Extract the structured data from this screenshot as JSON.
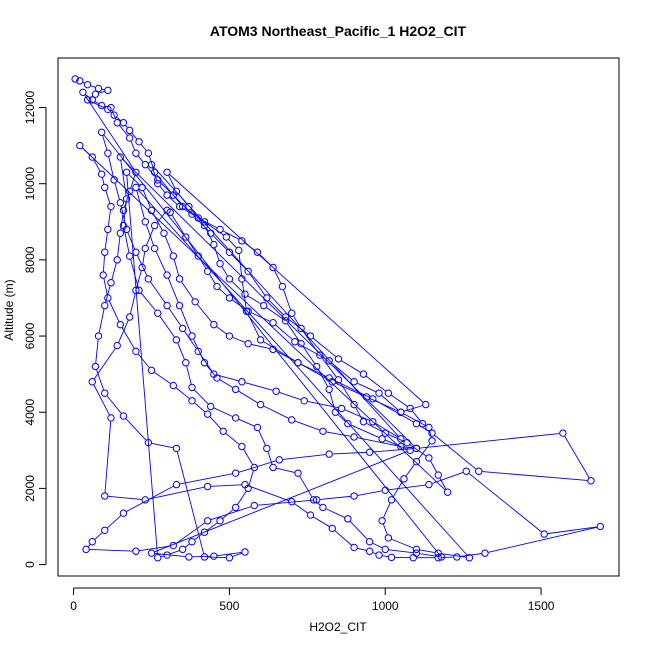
{
  "chart_data": {
    "type": "line",
    "title": "ATOM3 Northeast_Pacific_1 H2O2_CIT",
    "xlabel": "H2O2_CIT",
    "ylabel": "Altitude (m)",
    "xlim": [
      -50,
      1750
    ],
    "ylim": [
      -300,
      13300
    ],
    "xticks": [
      0,
      500,
      1000,
      1500
    ],
    "yticks": [
      0,
      2000,
      4000,
      6000,
      8000,
      10000,
      12000
    ],
    "grid": false,
    "legend": "none",
    "series_color": "#0000ff",
    "marker": "open-circle",
    "series": [
      {
        "name": "",
        "points": [
          [
            5,
            12750
          ],
          [
            20,
            12700
          ],
          [
            45,
            12600
          ],
          [
            80,
            12500
          ],
          [
            110,
            12450
          ],
          [
            70,
            12350
          ],
          [
            45,
            12200
          ],
          [
            110,
            11950
          ],
          [
            130,
            11800
          ],
          [
            160,
            11600
          ],
          [
            180,
            11400
          ],
          [
            210,
            11100
          ],
          [
            240,
            10800
          ],
          [
            260,
            10300
          ],
          [
            350,
            9400
          ],
          [
            420,
            9000
          ],
          [
            490,
            8600
          ],
          [
            530,
            8250
          ],
          [
            540,
            7500
          ],
          [
            555,
            6650
          ],
          [
            600,
            5900
          ],
          [
            720,
            5300
          ],
          [
            820,
            4900
          ],
          [
            960,
            4350
          ],
          [
            1100,
            3700
          ],
          [
            1150,
            3450
          ],
          [
            1300,
            2450
          ],
          [
            1660,
            2200
          ],
          [
            1570,
            3450
          ],
          [
            1100,
            3050
          ],
          [
            950,
            2950
          ],
          [
            820,
            2900
          ],
          [
            660,
            2750
          ],
          [
            520,
            2400
          ],
          [
            330,
            2100
          ],
          [
            160,
            1350
          ],
          [
            100,
            900
          ],
          [
            60,
            600
          ],
          [
            40,
            400
          ],
          [
            200,
            350
          ],
          [
            320,
            500
          ],
          [
            430,
            1150
          ],
          [
            580,
            1550
          ],
          [
            780,
            1700
          ],
          [
            900,
            1800
          ],
          [
            1000,
            1950
          ],
          [
            1140,
            2100
          ],
          [
            1260,
            2450
          ],
          [
            1510,
            800
          ],
          [
            1690,
            1000
          ],
          [
            1320,
            300
          ],
          [
            1230,
            200
          ],
          [
            1170,
            180
          ],
          [
            1090,
            180
          ],
          [
            1020,
            190
          ],
          [
            980,
            250
          ],
          [
            950,
            350
          ],
          [
            900,
            450
          ],
          [
            830,
            950
          ],
          [
            760,
            1300
          ],
          [
            700,
            1650
          ],
          [
            550,
            2100
          ],
          [
            430,
            2050
          ],
          [
            230,
            1700
          ],
          [
            100,
            1800
          ],
          [
            120,
            3850
          ],
          [
            60,
            4800
          ],
          [
            140,
            5750
          ],
          [
            180,
            6500
          ],
          [
            200,
            7200
          ],
          [
            220,
            7800
          ],
          [
            230,
            8300
          ],
          [
            260,
            8900
          ],
          [
            300,
            9300
          ],
          [
            310,
            9250
          ],
          [
            360,
            8600
          ],
          [
            400,
            8100
          ],
          [
            430,
            7700
          ],
          [
            460,
            7300
          ],
          [
            500,
            7000
          ],
          [
            560,
            6650
          ],
          [
            640,
            6350
          ],
          [
            710,
            5850
          ],
          [
            820,
            5350
          ],
          [
            900,
            4800
          ],
          [
            980,
            4500
          ],
          [
            1050,
            4000
          ],
          [
            1140,
            3600
          ],
          [
            1150,
            3250
          ],
          [
            1100,
            2700
          ],
          [
            1060,
            2250
          ],
          [
            1020,
            1700
          ],
          [
            990,
            1150
          ],
          [
            1010,
            700
          ],
          [
            1100,
            400
          ],
          [
            1170,
            300
          ],
          [
            1270,
            180
          ],
          [
            200,
            9900
          ],
          [
            230,
            9000
          ],
          [
            260,
            8300
          ],
          [
            300,
            7600
          ],
          [
            340,
            6800
          ],
          [
            380,
            6000
          ],
          [
            420,
            5300
          ],
          [
            460,
            4900
          ],
          [
            520,
            4600
          ],
          [
            600,
            4200
          ],
          [
            700,
            3800
          ],
          [
            800,
            3500
          ],
          [
            900,
            3350
          ],
          [
            1050,
            3100
          ],
          [
            1100,
            3050
          ],
          [
            150,
            10700
          ],
          [
            170,
            9600
          ],
          [
            160,
            8900
          ],
          [
            180,
            8100
          ],
          [
            210,
            7200
          ],
          [
            270,
            6600
          ],
          [
            330,
            5900
          ],
          [
            360,
            5300
          ],
          [
            380,
            4650
          ],
          [
            440,
            4150
          ],
          [
            520,
            3850
          ],
          [
            590,
            3600
          ],
          [
            620,
            3050
          ],
          [
            640,
            2550
          ],
          [
            720,
            2400
          ],
          [
            770,
            1700
          ],
          [
            800,
            1500
          ],
          [
            880,
            1200
          ],
          [
            950,
            600
          ],
          [
            1000,
            400
          ],
          [
            1100,
            300
          ],
          [
            1180,
            200
          ],
          [
            90,
            11350
          ],
          [
            110,
            10800
          ],
          [
            130,
            10100
          ],
          [
            150,
            9500
          ],
          [
            170,
            8800
          ],
          [
            200,
            8200
          ],
          [
            240,
            7500
          ],
          [
            300,
            6800
          ],
          [
            350,
            6200
          ],
          [
            400,
            5600
          ],
          [
            450,
            5000
          ],
          [
            540,
            4800
          ],
          [
            650,
            4550
          ],
          [
            740,
            4300
          ],
          [
            860,
            4100
          ],
          [
            960,
            3750
          ],
          [
            1050,
            3300
          ],
          [
            250,
            10500
          ],
          [
            270,
            10000
          ],
          [
            300,
            9700
          ],
          [
            340,
            9400
          ],
          [
            400,
            9100
          ],
          [
            470,
            8800
          ],
          [
            540,
            8500
          ],
          [
            590,
            8200
          ],
          [
            640,
            7800
          ],
          [
            670,
            7300
          ],
          [
            700,
            6600
          ],
          [
            730,
            6200
          ],
          [
            790,
            5500
          ],
          [
            850,
            4850
          ],
          [
            900,
            4200
          ],
          [
            930,
            3750
          ],
          [
            1000,
            3450
          ],
          [
            1070,
            3200
          ],
          [
            1140,
            2800
          ],
          [
            1170,
            2350
          ],
          [
            1200,
            1900
          ],
          [
            20,
            11000
          ],
          [
            60,
            10700
          ],
          [
            90,
            10250
          ],
          [
            100,
            9900
          ],
          [
            120,
            9400
          ],
          [
            110,
            8800
          ],
          [
            100,
            8200
          ],
          [
            95,
            7600
          ],
          [
            110,
            7000
          ],
          [
            150,
            6300
          ],
          [
            200,
            5600
          ],
          [
            250,
            5100
          ],
          [
            320,
            4700
          ],
          [
            380,
            4300
          ],
          [
            430,
            3950
          ],
          [
            480,
            3500
          ],
          [
            540,
            3100
          ],
          [
            580,
            2550
          ],
          [
            560,
            2000
          ],
          [
            520,
            1500
          ],
          [
            470,
            1150
          ],
          [
            420,
            850
          ],
          [
            380,
            600
          ],
          [
            350,
            400
          ],
          [
            300,
            250
          ],
          [
            270,
            180
          ],
          [
            170,
            10300
          ],
          [
            220,
            9900
          ],
          [
            250,
            9300
          ],
          [
            290,
            8700
          ],
          [
            320,
            8100
          ],
          [
            340,
            7500
          ],
          [
            390,
            6900
          ],
          [
            450,
            6300
          ],
          [
            500,
            6000
          ],
          [
            560,
            5800
          ],
          [
            640,
            5650
          ],
          [
            720,
            5300
          ],
          [
            830,
            4800
          ],
          [
            940,
            4400
          ],
          [
            1050,
            4000
          ],
          [
            1130,
            4200
          ],
          [
            300,
            10300
          ],
          [
            330,
            9800
          ],
          [
            370,
            9400
          ],
          [
            420,
            8900
          ],
          [
            450,
            8400
          ],
          [
            470,
            7900
          ],
          [
            500,
            7500
          ],
          [
            550,
            7100
          ],
          [
            610,
            6800
          ],
          [
            680,
            6400
          ],
          [
            730,
            5800
          ],
          [
            780,
            5200
          ],
          [
            820,
            4600
          ],
          [
            840,
            4000
          ],
          [
            880,
            3700
          ],
          [
            990,
            3300
          ],
          [
            1080,
            3000
          ],
          [
            250,
            300
          ],
          [
            370,
            200
          ],
          [
            450,
            220
          ],
          [
            550,
            330
          ],
          [
            500,
            180
          ],
          [
            420,
            200
          ],
          [
            330,
            3050
          ],
          [
            240,
            3200
          ],
          [
            160,
            3900
          ],
          [
            100,
            4500
          ],
          [
            70,
            5200
          ],
          [
            80,
            6000
          ],
          [
            100,
            6800
          ],
          [
            120,
            7400
          ],
          [
            140,
            8000
          ],
          [
            150,
            8700
          ],
          [
            160,
            9300
          ],
          [
            180,
            9800
          ],
          [
            200,
            10300
          ],
          [
            30,
            12400
          ],
          [
            60,
            12200
          ],
          [
            90,
            12050
          ],
          [
            120,
            12000
          ],
          [
            140,
            11600
          ],
          [
            180,
            11200
          ],
          [
            200,
            10800
          ],
          [
            230,
            10500
          ],
          [
            270,
            10100
          ],
          [
            320,
            9700
          ],
          [
            380,
            9200
          ],
          [
            440,
            8700
          ],
          [
            500,
            8200
          ],
          [
            560,
            7700
          ],
          [
            620,
            7000
          ],
          [
            680,
            6500
          ],
          [
            760,
            6000
          ],
          [
            850,
            5400
          ],
          [
            930,
            5000
          ],
          [
            1010,
            4500
          ],
          [
            1080,
            4100
          ],
          [
            1120,
            3700
          ]
        ]
      }
    ]
  }
}
